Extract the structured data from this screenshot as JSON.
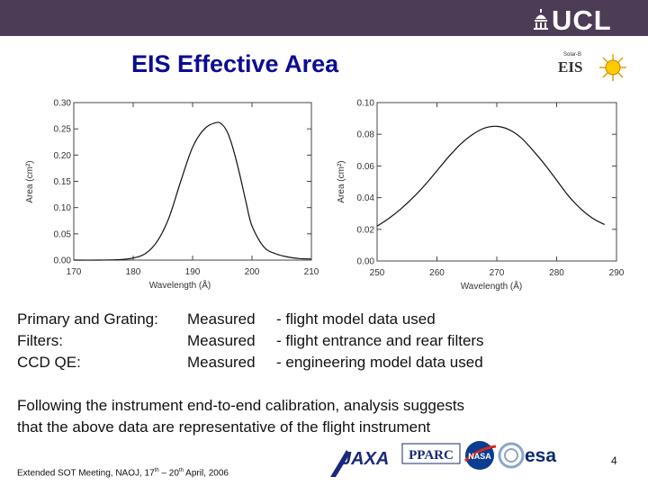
{
  "header": {
    "logo_text": "UCL"
  },
  "title": "EIS Effective Area",
  "eis_logo": {
    "small_text": "Solar-B",
    "text": "EIS"
  },
  "chart_data": [
    {
      "type": "line",
      "title": "",
      "xlabel": "Wavelength (Å)",
      "ylabel": "Area (cm²)",
      "xlim": [
        170,
        210
      ],
      "ylim": [
        0,
        0.3
      ],
      "xticks": [
        "170",
        "180",
        "190",
        "200",
        "210"
      ],
      "yticks": [
        "0.00",
        "0.05",
        "0.10",
        "0.15",
        "0.20",
        "0.25",
        "0.30"
      ],
      "series": [
        {
          "x": [
            170,
            174,
            178,
            180,
            182,
            184,
            186,
            188,
            190,
            192,
            194,
            195,
            196,
            197,
            198,
            199,
            200,
            202,
            204,
            206,
            208,
            210
          ],
          "y": [
            0.0,
            0.0,
            0.001,
            0.004,
            0.012,
            0.035,
            0.08,
            0.15,
            0.215,
            0.25,
            0.262,
            0.258,
            0.24,
            0.205,
            0.16,
            0.11,
            0.065,
            0.025,
            0.012,
            0.006,
            0.003,
            0.002
          ]
        }
      ],
      "grid": false
    },
    {
      "type": "line",
      "title": "",
      "xlabel": "Wavelength (Å)",
      "ylabel": "Area (cm²)",
      "xlim": [
        250,
        290
      ],
      "ylim": [
        0,
        0.1
      ],
      "xticks": [
        "250",
        "260",
        "270",
        "280",
        "290"
      ],
      "yticks": [
        "0.00",
        "0.02",
        "0.04",
        "0.06",
        "0.08",
        "0.10"
      ],
      "series": [
        {
          "x": [
            250,
            252,
            254,
            256,
            258,
            260,
            262,
            264,
            266,
            268,
            270,
            272,
            274,
            276,
            278,
            280,
            282,
            284,
            286,
            288
          ],
          "y": [
            0.022,
            0.027,
            0.033,
            0.04,
            0.048,
            0.057,
            0.066,
            0.074,
            0.08,
            0.084,
            0.085,
            0.083,
            0.078,
            0.07,
            0.061,
            0.051,
            0.041,
            0.033,
            0.027,
            0.023
          ]
        }
      ],
      "grid": false
    }
  ],
  "body": {
    "rows": [
      {
        "label": "Primary and Grating:",
        "status": "Measured",
        "desc": "- flight model data used"
      },
      {
        "label": "Filters:",
        "status": "Measured",
        "desc": "- flight entrance and rear filters"
      },
      {
        "label": "CCD QE:",
        "status": "Measured",
        "desc": "- engineering model data used"
      }
    ],
    "conclusion_line1": "Following the instrument end-to-end calibration, analysis suggests",
    "conclusion_line2": "that the above data are representative of the flight instrument"
  },
  "footer": {
    "prefix": "Extended SOT Meeting, NAOJ, 17",
    "sup1": "th",
    "middle": " – 20",
    "sup2": "th",
    "suffix": " April, 2006"
  },
  "page_number": "4",
  "partner_logos": {
    "jaxa": "JAXA",
    "pparc": "PPARC",
    "nasa": "NASA",
    "esa": "esa"
  }
}
